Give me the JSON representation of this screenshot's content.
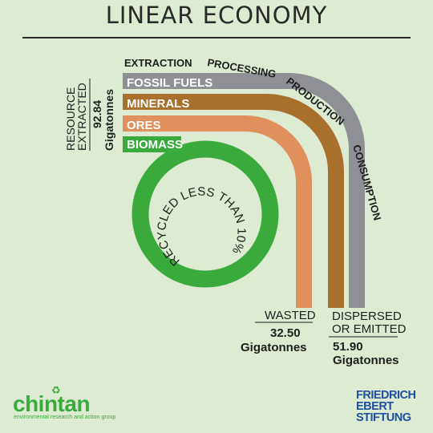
{
  "title": "LINEAR ECONOMY",
  "stages": [
    "EXTRACTION",
    "PROCESSING",
    "PRODUCTION",
    "CONSUMPTION"
  ],
  "resources": [
    {
      "label": "FOSSIL FUELS",
      "color": "#8f9096"
    },
    {
      "label": "MINERALS",
      "color": "#a8702c"
    },
    {
      "label": "ORES",
      "color": "#e0905c"
    },
    {
      "label": "BIOMASS",
      "color": "#3aaa3c"
    }
  ],
  "extracted": {
    "line1": "RESOURCE",
    "line2": "EXTRACTED",
    "amount": "92.84",
    "unit": "Gigatonnes"
  },
  "recycled_label": "RECYCLED LESS THAN 10%",
  "wasted": {
    "label": "WASTED",
    "amount": "32.50",
    "unit": "Gigatonnes"
  },
  "dispersed": {
    "line1": "DISPERSED",
    "line2": "OR EMITTED",
    "amount": "51.90",
    "unit": "Gigatonnes"
  },
  "logos": {
    "left_name": "chintan",
    "left_tagline": "environmental research and action group",
    "left_icon": "recycle-icon",
    "right_lines": [
      "FRIEDRICH",
      "EBERT",
      "STIFTUNG"
    ]
  }
}
